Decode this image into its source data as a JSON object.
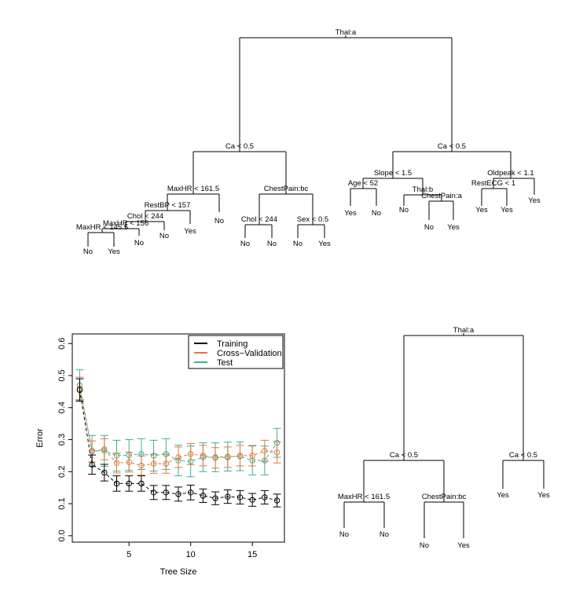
{
  "chart_data": [
    {
      "type": "tree",
      "nodes": [
        {
          "id": "root",
          "split": "Thal:a"
        },
        {
          "id": "L",
          "split": "Ca < 0.5"
        },
        {
          "id": "R",
          "split": "Ca < 0.5"
        },
        {
          "id": "LL",
          "split": "MaxHR < 161.5"
        },
        {
          "id": "LR",
          "split": "ChestPain:bc"
        },
        {
          "id": "LLa",
          "split": "RestBP < 157"
        },
        {
          "id": "LLb",
          "split": "Chol < 244"
        },
        {
          "id": "LLc",
          "split": "MaxHR < 156"
        },
        {
          "id": "LLd",
          "split": "MaxHR < 145.5"
        },
        {
          "id": "LRa",
          "split": "Chol < 244"
        },
        {
          "id": "LRb",
          "split": "Sex < 0.5"
        },
        {
          "id": "RL",
          "split": "Slope < 1.5"
        },
        {
          "id": "RLa",
          "split": "Age < 52"
        },
        {
          "id": "RLb",
          "split": "Thal:b"
        },
        {
          "id": "RLc",
          "split": "ChestPain:a"
        },
        {
          "id": "RR",
          "split": "Oldpeak < 1.1"
        },
        {
          "id": "RRa",
          "split": "RestECG < 1"
        }
      ],
      "leaves": [
        "No",
        "Yes",
        "No",
        "No",
        "Yes",
        "No",
        "No",
        "No",
        "No",
        "Yes",
        "Yes",
        "No",
        "No",
        "No",
        "Yes",
        "Yes",
        "Yes",
        "Yes"
      ]
    },
    {
      "type": "line",
      "xlabel": "Tree Size",
      "ylabel": "Error",
      "xlim": [
        0.4,
        17.6
      ],
      "ylim": [
        -0.02,
        0.63
      ],
      "xticks": [
        5,
        10,
        15
      ],
      "yticks": [
        0.0,
        0.1,
        0.2,
        0.3,
        0.4,
        0.5,
        0.6
      ],
      "legend": "top-right",
      "x": [
        1,
        2,
        3,
        4,
        5,
        6,
        7,
        8,
        9,
        10,
        11,
        12,
        13,
        14,
        15,
        16,
        17
      ],
      "series": [
        {
          "name": "Training",
          "color": "#000000",
          "values": [
            0.455,
            0.222,
            0.197,
            0.163,
            0.163,
            0.163,
            0.135,
            0.135,
            0.13,
            0.135,
            0.125,
            0.117,
            0.122,
            0.12,
            0.112,
            0.12,
            0.11
          ],
          "err": [
            0.035,
            0.03,
            0.026,
            0.024,
            0.024,
            0.024,
            0.022,
            0.022,
            0.022,
            0.023,
            0.021,
            0.02,
            0.021,
            0.021,
            0.02,
            0.021,
            0.02
          ]
        },
        {
          "name": "Cross−Validation",
          "color": "#e07b39",
          "values": [
            0.46,
            0.263,
            0.27,
            0.227,
            0.23,
            0.219,
            0.225,
            0.225,
            0.245,
            0.255,
            0.25,
            0.243,
            0.245,
            0.25,
            0.25,
            0.265,
            0.26
          ],
          "err": [
            0.035,
            0.033,
            0.033,
            0.031,
            0.031,
            0.03,
            0.03,
            0.03,
            0.032,
            0.033,
            0.032,
            0.032,
            0.032,
            0.032,
            0.032,
            0.033,
            0.033
          ]
        },
        {
          "name": "Test",
          "color": "#3aaf9a",
          "values": [
            0.47,
            0.265,
            0.265,
            0.25,
            0.252,
            0.255,
            0.25,
            0.255,
            0.235,
            0.232,
            0.245,
            0.245,
            0.247,
            0.248,
            0.235,
            0.235,
            0.29
          ],
          "err": [
            0.048,
            0.048,
            0.048,
            0.048,
            0.048,
            0.048,
            0.048,
            0.048,
            0.048,
            0.048,
            0.045,
            0.045,
            0.045,
            0.045,
            0.045,
            0.045,
            0.045
          ]
        }
      ]
    },
    {
      "type": "tree",
      "nodes": [
        {
          "id": "root",
          "split": "Thal:a"
        },
        {
          "id": "L",
          "split": "Ca < 0.5"
        },
        {
          "id": "R",
          "split": "Ca < 0.5"
        },
        {
          "id": "LL",
          "split": "MaxHR < 161.5"
        },
        {
          "id": "LR",
          "split": "ChestPain:bc"
        }
      ],
      "leaves": [
        "No",
        "No",
        "No",
        "Yes",
        "Yes",
        "Yes"
      ]
    }
  ]
}
